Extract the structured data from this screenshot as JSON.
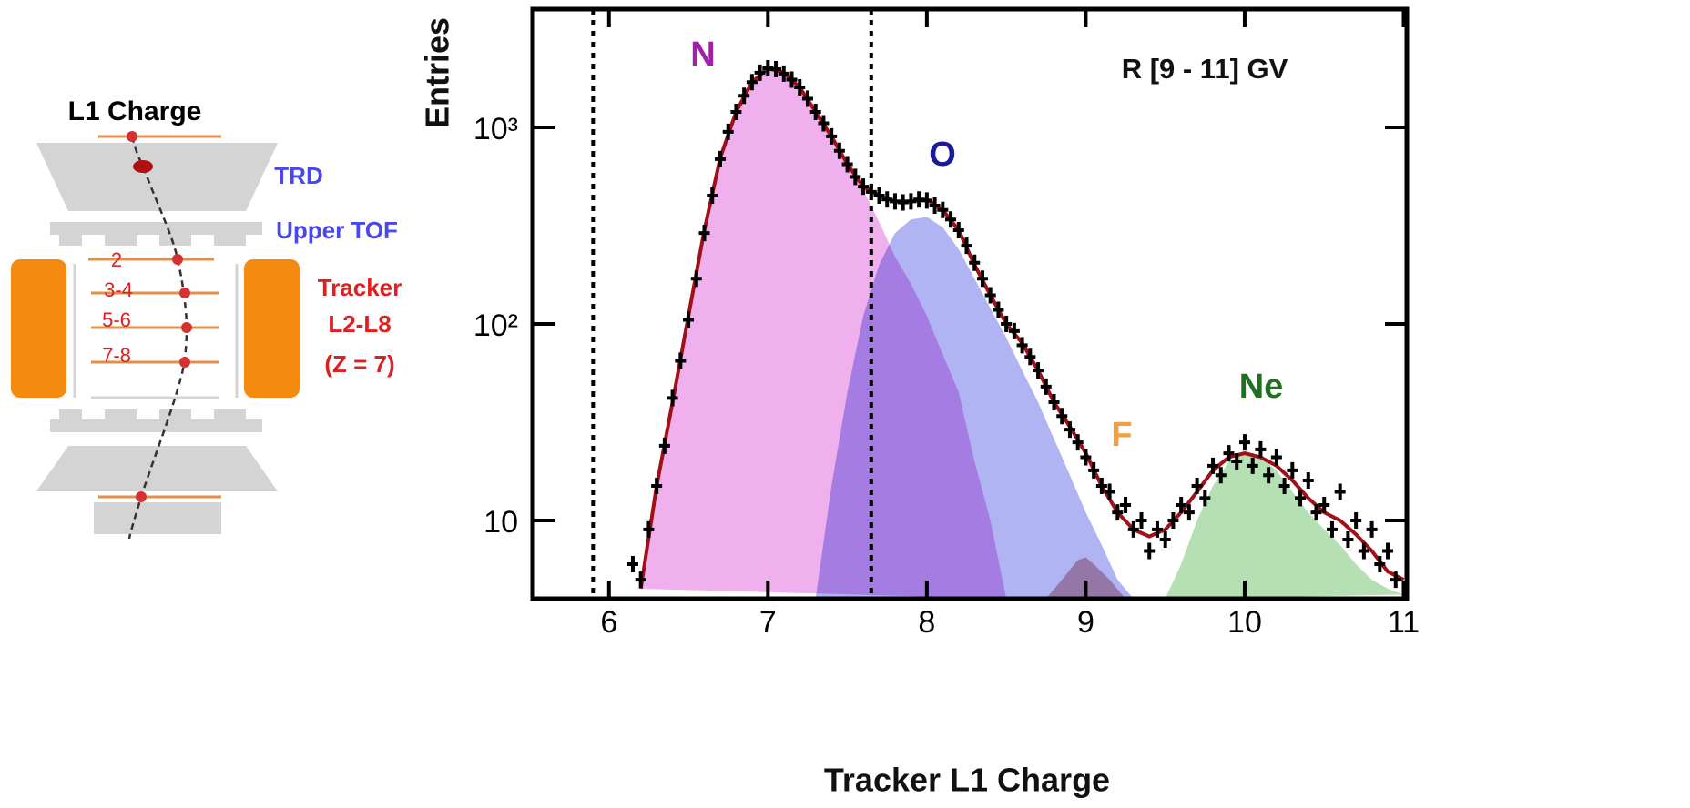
{
  "diagram": {
    "labels": {
      "l1": "L1 Charge",
      "trd": "TRD",
      "tof": "Upper TOF",
      "layer2": "2",
      "layer34": "3-4",
      "layer56": "5-6",
      "layer78": "7-8",
      "tracker": "Tracker",
      "range": "L2-L8",
      "z": "(Z = 7)"
    }
  },
  "chart_data": {
    "type": "histogram-fit",
    "ylabel": "Entries",
    "xlabel": "Tracker L1 Charge",
    "annotation": "R [9 - 11] GV",
    "xlim": [
      5.52,
      11.02
    ],
    "ylim": [
      4,
      4000
    ],
    "log_y": true,
    "xticks": [
      6,
      7,
      8,
      9,
      10,
      11
    ],
    "yticks": [
      10,
      {
        "value": 100,
        "label": "10²"
      },
      {
        "value": 1000,
        "label": "10³"
      }
    ],
    "vlines": [
      5.9,
      7.65
    ],
    "series": [
      {
        "name": "N",
        "style": "area",
        "color": "#f0b0ee",
        "x": [
          6.2,
          6.3,
          6.4,
          6.5,
          6.6,
          6.7,
          6.8,
          6.9,
          7.0,
          7.1,
          7.2,
          7.3,
          7.4,
          7.5,
          7.6,
          7.7,
          7.8,
          7.9,
          8.0,
          8.1,
          8.2,
          8.3,
          8.4,
          8.5
        ],
        "values": [
          4.5,
          15,
          40,
          110,
          300,
          700,
          1200,
          1700,
          2000,
          1900,
          1600,
          1200,
          900,
          650,
          480,
          330,
          220,
          160,
          110,
          70,
          45,
          20,
          10,
          4
        ]
      },
      {
        "name": "O",
        "style": "area",
        "color": "#b0b4f2",
        "x": [
          7.3,
          7.4,
          7.5,
          7.6,
          7.7,
          7.8,
          7.9,
          8.0,
          8.1,
          8.2,
          8.3,
          8.4,
          8.5,
          8.6,
          8.7,
          8.8,
          8.9,
          9.0,
          9.1,
          9.2,
          9.3
        ],
        "values": [
          4,
          15,
          45,
          110,
          200,
          290,
          340,
          350,
          310,
          240,
          170,
          120,
          85,
          58,
          40,
          26,
          17,
          11,
          7.5,
          5,
          4
        ]
      },
      {
        "name": "F",
        "style": "area",
        "color": "#d8a8b0",
        "x": [
          8.75,
          8.85,
          8.95,
          9.0,
          9.05,
          9.15,
          9.25
        ],
        "values": [
          4,
          5,
          6.3,
          6.5,
          6,
          5,
          4
        ]
      },
      {
        "name": "Ne",
        "style": "area",
        "color": "#b4e0b4",
        "x": [
          9.5,
          9.6,
          9.7,
          9.8,
          9.9,
          10.0,
          10.1,
          10.2,
          10.3,
          10.4,
          10.5,
          10.6,
          10.7,
          10.8,
          10.9,
          11.0
        ],
        "values": [
          4,
          6,
          10,
          15,
          20,
          22,
          21,
          18,
          14,
          11,
          9,
          7.5,
          6,
          5,
          4.5,
          4.2
        ]
      },
      {
        "style": "line",
        "color": "#a01018",
        "x": [
          6.2,
          6.3,
          6.4,
          6.5,
          6.6,
          6.7,
          6.8,
          6.9,
          7.0,
          7.1,
          7.2,
          7.3,
          7.4,
          7.5,
          7.6,
          7.7,
          7.8,
          7.9,
          8.0,
          8.1,
          8.2,
          8.3,
          8.4,
          8.5,
          8.6,
          8.7,
          8.8,
          8.9,
          9.0,
          9.1,
          9.2,
          9.3,
          9.4,
          9.5,
          9.6,
          9.7,
          9.8,
          9.9,
          10.0,
          10.1,
          10.2,
          10.3,
          10.4,
          10.5,
          10.6,
          10.7,
          10.8,
          10.9,
          11.0
        ],
        "values": [
          4.5,
          15,
          40,
          110,
          300,
          700,
          1200,
          1700,
          2000,
          1900,
          1600,
          1200,
          900,
          650,
          500,
          450,
          420,
          420,
          430,
          380,
          300,
          200,
          140,
          100,
          80,
          58,
          40,
          30,
          22,
          15,
          11,
          9,
          8.3,
          9,
          11,
          14,
          18,
          21,
          22,
          21,
          19,
          16,
          13,
          11,
          10,
          8.5,
          7,
          5.5,
          5
        ]
      },
      {
        "style": "points",
        "color": "#000000",
        "x": [
          6.15,
          6.2,
          6.25,
          6.3,
          6.35,
          6.4,
          6.45,
          6.5,
          6.55,
          6.6,
          6.65,
          6.7,
          6.75,
          6.8,
          6.85,
          6.9,
          6.95,
          7.0,
          7.05,
          7.1,
          7.15,
          7.2,
          7.25,
          7.3,
          7.35,
          7.4,
          7.45,
          7.5,
          7.55,
          7.6,
          7.65,
          7.7,
          7.75,
          7.8,
          7.85,
          7.9,
          7.95,
          8.0,
          8.05,
          8.1,
          8.15,
          8.2,
          8.25,
          8.3,
          8.35,
          8.4,
          8.45,
          8.5,
          8.55,
          8.6,
          8.65,
          8.7,
          8.75,
          8.8,
          8.85,
          8.9,
          8.95,
          9.0,
          9.05,
          9.1,
          9.15,
          9.2,
          9.25,
          9.3,
          9.35,
          9.4,
          9.45,
          9.5,
          9.55,
          9.6,
          9.65,
          9.7,
          9.75,
          9.8,
          9.85,
          9.9,
          9.95,
          10.0,
          10.05,
          10.1,
          10.15,
          10.2,
          10.25,
          10.3,
          10.35,
          10.4,
          10.45,
          10.5,
          10.55,
          10.6,
          10.65,
          10.7,
          10.75,
          10.8,
          10.85,
          10.9,
          10.95
        ],
        "values": [
          6,
          5,
          9,
          15,
          24,
          42,
          65,
          105,
          170,
          290,
          450,
          690,
          950,
          1200,
          1450,
          1700,
          1900,
          2000,
          1980,
          1880,
          1750,
          1600,
          1400,
          1200,
          1050,
          900,
          760,
          650,
          560,
          500,
          470,
          450,
          430,
          420,
          415,
          420,
          430,
          425,
          400,
          380,
          340,
          300,
          250,
          205,
          170,
          140,
          118,
          100,
          92,
          78,
          68,
          58,
          48,
          40,
          34,
          29,
          25,
          21,
          18,
          15,
          14,
          11,
          12,
          9,
          10,
          7,
          9,
          8,
          10,
          12,
          11,
          15,
          13,
          19,
          17,
          22,
          20,
          25,
          19,
          23,
          17,
          21,
          15,
          18,
          13,
          16,
          11,
          12,
          9,
          14,
          8,
          10,
          7,
          9,
          6,
          7,
          5
        ]
      }
    ]
  }
}
